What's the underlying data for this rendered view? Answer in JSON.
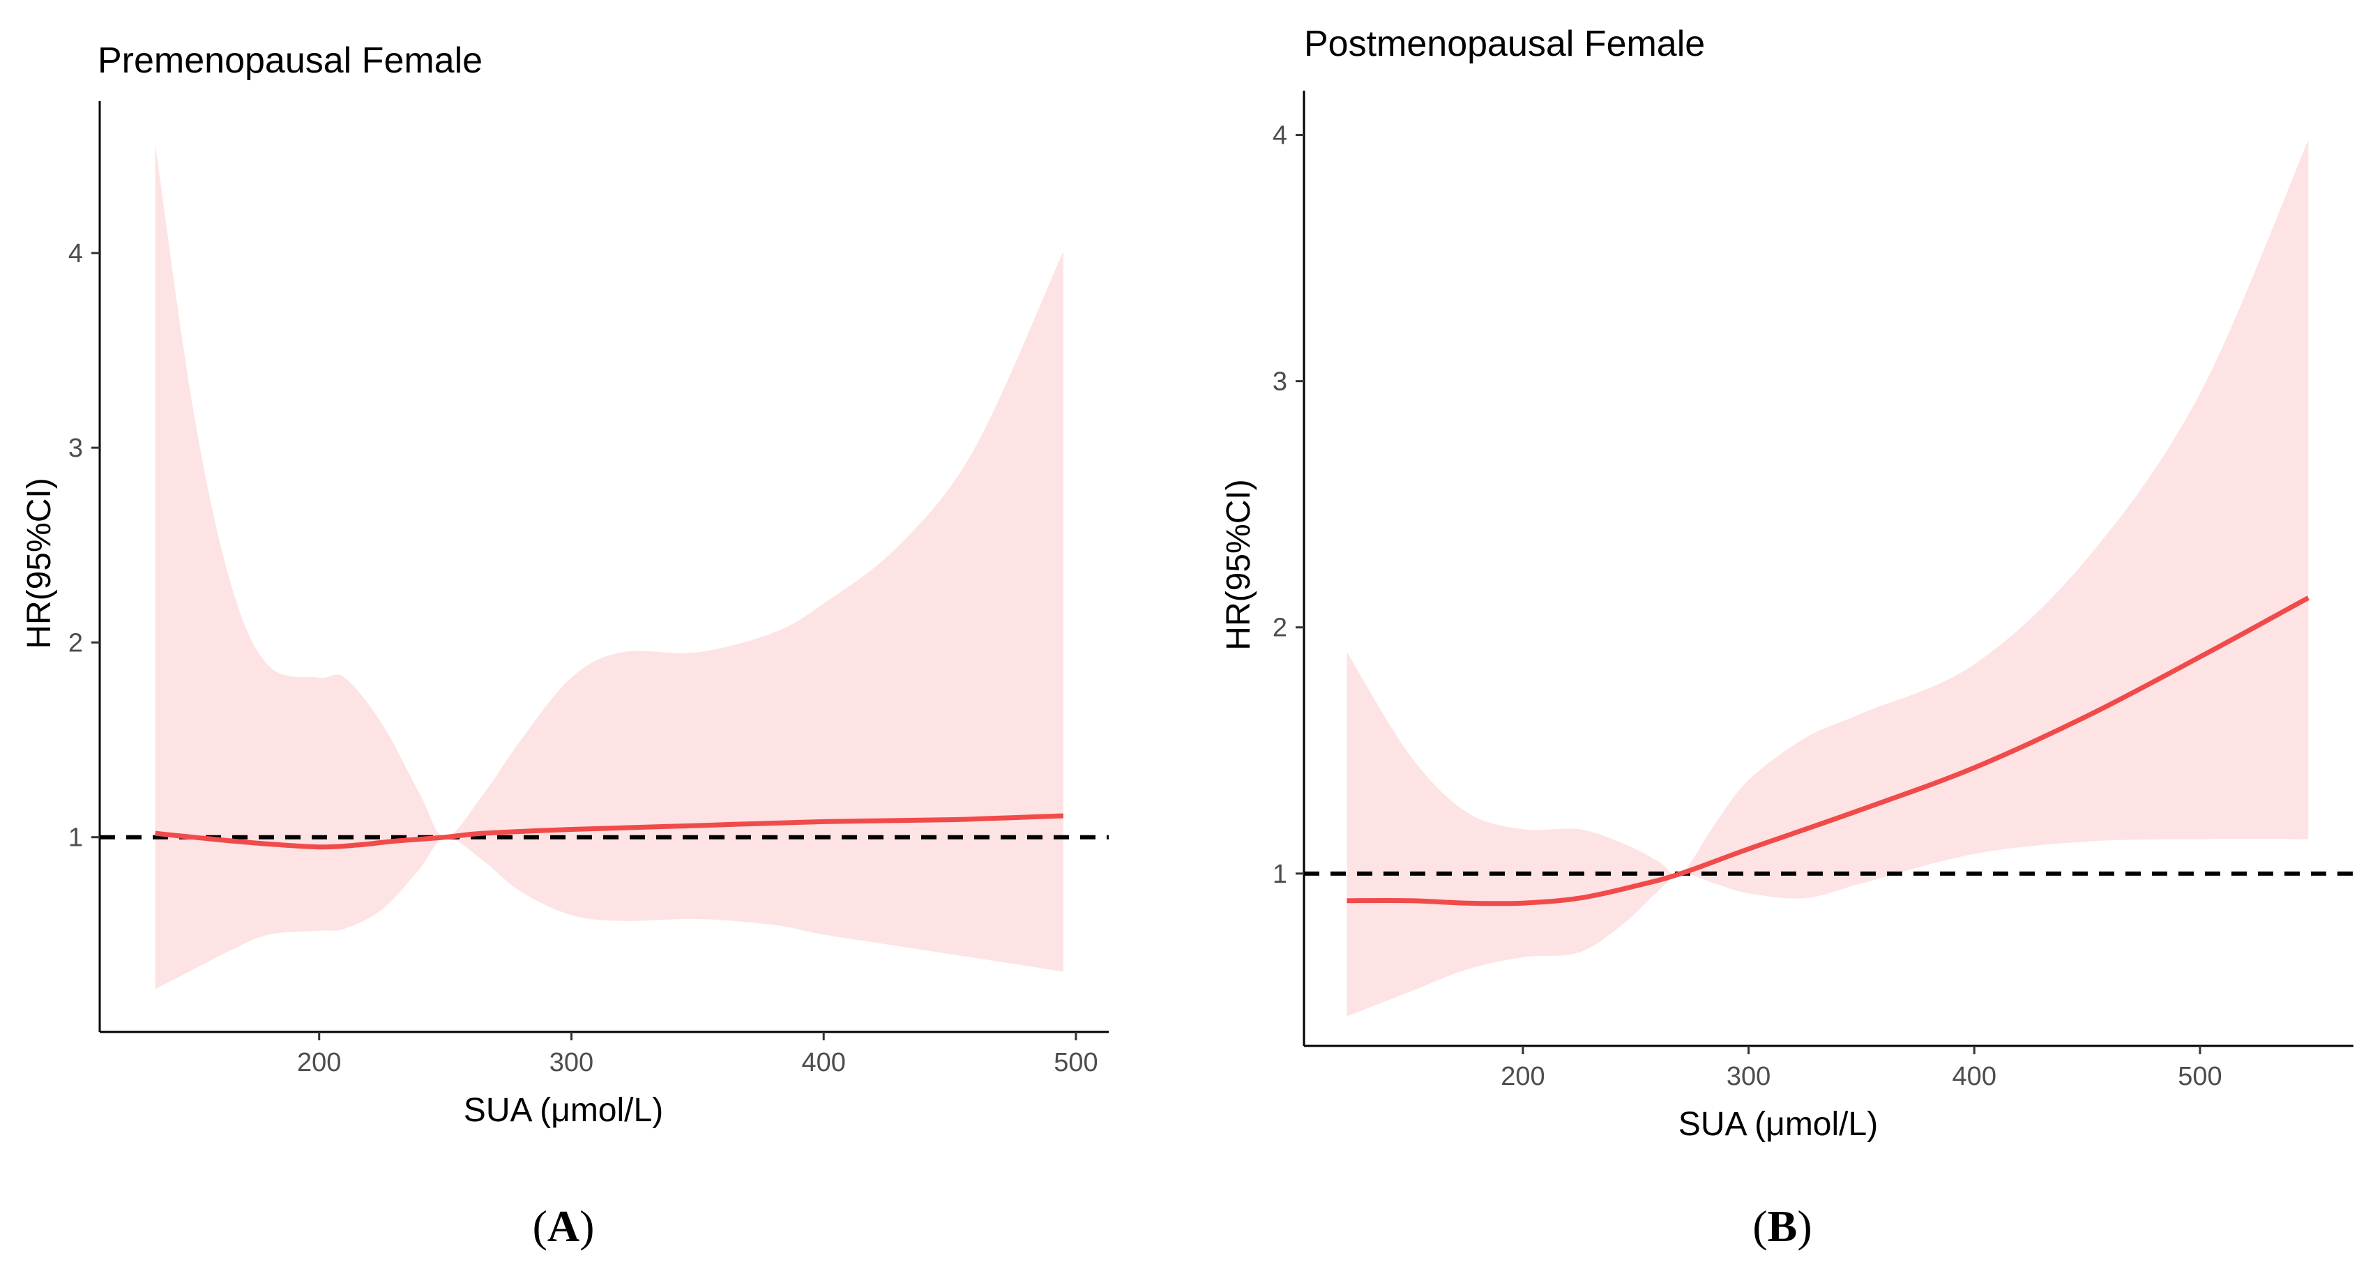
{
  "colors": {
    "band": "#fde3e3",
    "line": "#f14a4a",
    "ref": "#000000",
    "axis": "#000000"
  },
  "chart_data": [
    {
      "type": "line",
      "panel_label": "A",
      "title": "Premenopausal Female",
      "xlabel": "SUA (μmol/L)",
      "ylabel": "HR(95%CI)",
      "xlim": [
        113,
        513
      ],
      "ylim": [
        0.0,
        4.78
      ],
      "xticks": [
        200,
        300,
        400,
        500
      ],
      "yticks": [
        1,
        2,
        3,
        4
      ],
      "reference_line": 1,
      "series": [
        {
          "name": "HR",
          "x": [
            135,
            150,
            175,
            200,
            215,
            230,
            250,
            265,
            300,
            350,
            400,
            450,
            495
          ],
          "y": [
            1.02,
            1.0,
            0.97,
            0.95,
            0.96,
            0.98,
            1.0,
            1.02,
            1.04,
            1.06,
            1.08,
            1.09,
            1.11
          ]
        }
      ],
      "ci_band": {
        "x": [
          135,
          150,
          165,
          180,
          200,
          210,
          225,
          240,
          250,
          265,
          280,
          300,
          320,
          350,
          380,
          400,
          430,
          460,
          495
        ],
        "lower": [
          0.22,
          0.32,
          0.42,
          0.5,
          0.52,
          0.53,
          0.63,
          0.84,
          1.0,
          0.88,
          0.72,
          0.6,
          0.57,
          0.58,
          0.55,
          0.5,
          0.44,
          0.38,
          0.31
        ],
        "upper": [
          4.56,
          3.2,
          2.3,
          1.88,
          1.82,
          1.82,
          1.58,
          1.22,
          1.0,
          1.22,
          1.5,
          1.82,
          1.95,
          1.95,
          2.05,
          2.2,
          2.5,
          3.0,
          4.01
        ]
      }
    },
    {
      "type": "line",
      "panel_label": "B",
      "title": "Postmenopausal Female",
      "xlabel": "SUA (μmol/L)",
      "ylabel": "HR(95%CI)",
      "xlim": [
        103,
        568
      ],
      "ylim": [
        0.3,
        4.18
      ],
      "xticks": [
        200,
        300,
        400,
        500
      ],
      "yticks": [
        1,
        2,
        3,
        4
      ],
      "reference_line": 1,
      "series": [
        {
          "name": "HR",
          "x": [
            122,
            150,
            175,
            200,
            225,
            250,
            270,
            300,
            350,
            400,
            450,
            500,
            548
          ],
          "y": [
            0.89,
            0.89,
            0.88,
            0.88,
            0.9,
            0.95,
            1.0,
            1.1,
            1.26,
            1.43,
            1.64,
            1.88,
            2.12
          ]
        }
      ],
      "ci_band": {
        "x": [
          122,
          150,
          175,
          200,
          225,
          245,
          260,
          270,
          285,
          300,
          325,
          350,
          400,
          450,
          500,
          548
        ],
        "lower": [
          0.42,
          0.52,
          0.61,
          0.66,
          0.68,
          0.8,
          0.93,
          1.0,
          0.96,
          0.92,
          0.9,
          0.96,
          1.08,
          1.13,
          1.14,
          1.14
        ],
        "upper": [
          1.9,
          1.48,
          1.25,
          1.18,
          1.18,
          1.12,
          1.05,
          1.0,
          1.2,
          1.38,
          1.55,
          1.65,
          1.85,
          2.28,
          2.95,
          3.98
        ]
      }
    }
  ]
}
